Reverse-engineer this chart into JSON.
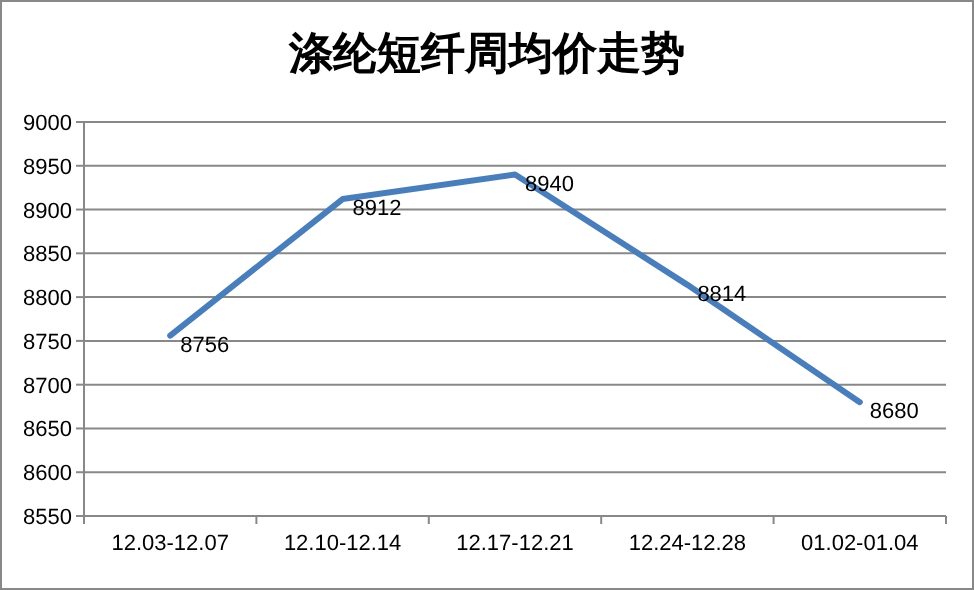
{
  "chart_data": {
    "type": "line",
    "title": "涤纶短纤周均价走势",
    "categories": [
      "12.03-12.07",
      "12.10-12.14",
      "12.17-12.21",
      "12.24-12.28",
      "01.02-01.04"
    ],
    "series": [
      {
        "color": "#4a7ebb",
        "values": [
          8756,
          8912,
          8940,
          8814,
          8680
        ]
      }
    ],
    "ylim": [
      8550,
      9000
    ],
    "yticks": [
      8550,
      8600,
      8650,
      8700,
      8750,
      8800,
      8850,
      8900,
      8950,
      9000
    ],
    "grid": "y",
    "data_labels": true,
    "marker": "none",
    "line_style": "solid"
  }
}
